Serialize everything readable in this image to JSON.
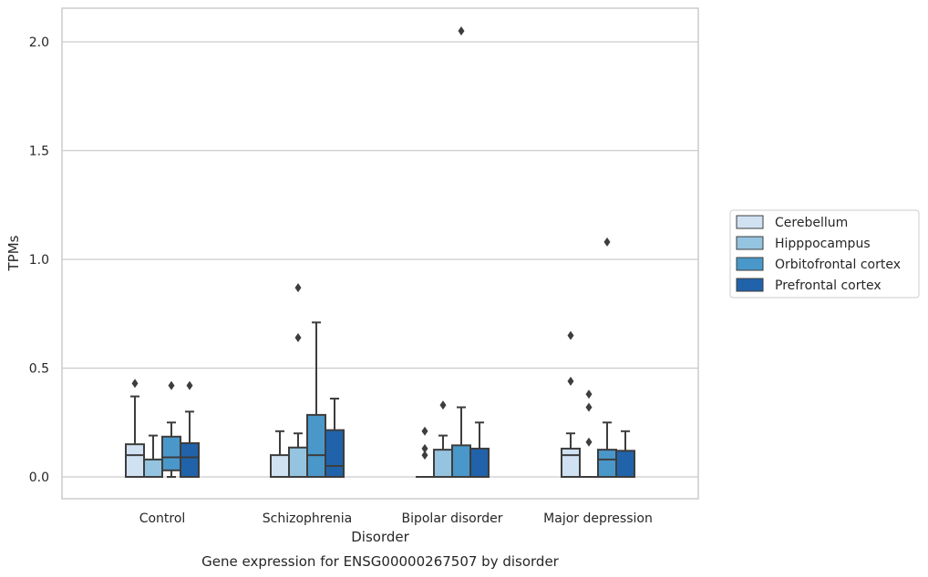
{
  "chart_data": {
    "type": "box",
    "title": "Gene expression for ENSG00000267507 by disorder",
    "xlabel": "Disorder",
    "ylabel": "TPMs",
    "ylim": [
      -0.1,
      2.16
    ],
    "yticks": [
      0.0,
      0.5,
      1.0,
      1.5,
      2.0
    ],
    "ytick_labels": [
      "0.0",
      "0.5",
      "1.0",
      "1.5",
      "2.0"
    ],
    "grid": true,
    "legend_position": "right",
    "categories": [
      "Control",
      "Schizophrenia",
      "Bipolar disorder",
      "Major depression"
    ],
    "series": [
      {
        "name": "Cerebellum",
        "color": "#d0e1f2",
        "boxes": [
          {
            "q1": 0.0,
            "median": 0.1,
            "q3": 0.15,
            "whisker_low": 0.0,
            "whisker_high": 0.37,
            "outliers": [
              0.43
            ]
          },
          {
            "q1": 0.0,
            "median": 0.0,
            "q3": 0.1,
            "whisker_low": 0.0,
            "whisker_high": 0.21,
            "outliers": []
          },
          {
            "q1": 0.0,
            "median": 0.0,
            "q3": 0.0,
            "whisker_low": 0.0,
            "whisker_high": 0.0,
            "outliers": [
              0.1,
              0.13,
              0.21
            ]
          },
          {
            "q1": 0.0,
            "median": 0.1,
            "q3": 0.13,
            "whisker_low": 0.0,
            "whisker_high": 0.2,
            "outliers": [
              0.44,
              0.65
            ]
          }
        ]
      },
      {
        "name": "Hipppocampus",
        "color": "#94c4df",
        "boxes": [
          {
            "q1": 0.0,
            "median": 0.0,
            "q3": 0.08,
            "whisker_low": 0.0,
            "whisker_high": 0.19,
            "outliers": []
          },
          {
            "q1": 0.0,
            "median": 0.0,
            "q3": 0.135,
            "whisker_low": 0.0,
            "whisker_high": 0.2,
            "outliers": [
              0.64,
              0.87
            ]
          },
          {
            "q1": 0.0,
            "median": 0.0,
            "q3": 0.125,
            "whisker_low": 0.0,
            "whisker_high": 0.19,
            "outliers": [
              0.33
            ]
          },
          {
            "q1": 0.0,
            "median": 0.0,
            "q3": 0.0,
            "whisker_low": 0.0,
            "whisker_high": 0.0,
            "outliers": [
              0.16,
              0.32,
              0.38
            ]
          }
        ]
      },
      {
        "name": "Orbitofrontal cortex",
        "color": "#4a98c9",
        "boxes": [
          {
            "q1": 0.03,
            "median": 0.09,
            "q3": 0.185,
            "whisker_low": 0.0,
            "whisker_high": 0.25,
            "outliers": [
              0.42
            ]
          },
          {
            "q1": 0.0,
            "median": 0.1,
            "q3": 0.285,
            "whisker_low": 0.0,
            "whisker_high": 0.71,
            "outliers": []
          },
          {
            "q1": 0.0,
            "median": 0.0,
            "q3": 0.145,
            "whisker_low": 0.0,
            "whisker_high": 0.32,
            "outliers": [
              2.05
            ]
          },
          {
            "q1": 0.0,
            "median": 0.08,
            "q3": 0.125,
            "whisker_low": 0.0,
            "whisker_high": 0.25,
            "outliers": [
              1.08
            ]
          }
        ]
      },
      {
        "name": "Prefrontal cortex",
        "color": "#2163aa",
        "boxes": [
          {
            "q1": 0.0,
            "median": 0.09,
            "q3": 0.155,
            "whisker_low": 0.0,
            "whisker_high": 0.3,
            "outliers": [
              0.42
            ]
          },
          {
            "q1": 0.0,
            "median": 0.05,
            "q3": 0.215,
            "whisker_low": 0.0,
            "whisker_high": 0.36,
            "outliers": []
          },
          {
            "q1": 0.0,
            "median": 0.0,
            "q3": 0.13,
            "whisker_low": 0.0,
            "whisker_high": 0.25,
            "outliers": []
          },
          {
            "q1": 0.0,
            "median": 0.0,
            "q3": 0.12,
            "whisker_low": 0.0,
            "whisker_high": 0.21,
            "outliers": []
          }
        ]
      }
    ]
  }
}
